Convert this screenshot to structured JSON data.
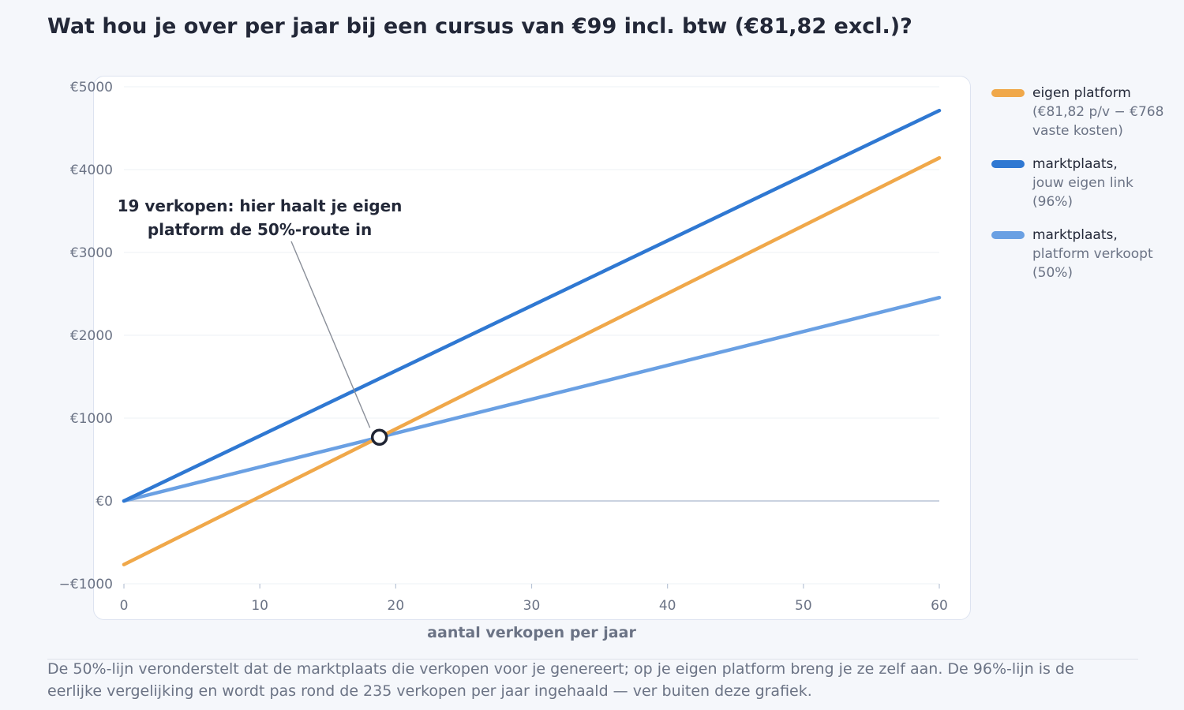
{
  "title": "Wat hou je over per jaar bij een cursus van €99 incl. btw (€81,82 excl.)?",
  "footnote": "De 50%-lijn veronderstelt dat de marktplaats die verkopen voor je genereert; op je eigen platform breng je ze zelf aan. De 96%-lijn is de eerlijke vergelijking en wordt pas rond de 235 verkopen per jaar ingehaald — ver buiten deze grafiek.",
  "legend": [
    {
      "name": "eigen platform",
      "sub": "(€81,82 p/v − €768 vaste kosten)",
      "color": "#f0a84a"
    },
    {
      "name": "marktplaats,",
      "sub": "jouw eigen link (96%)",
      "color": "#2f78d2"
    },
    {
      "name": "marktplaats,",
      "sub": "platform verkoopt (50%)",
      "color": "#6aa0e3"
    }
  ],
  "chart_data": {
    "type": "line",
    "xlabel": "aantal verkopen per jaar",
    "ylabel": "",
    "xlim": [
      0,
      60
    ],
    "ylim": [
      -1000,
      5000
    ],
    "xticks": [
      0,
      10,
      20,
      30,
      40,
      50,
      60
    ],
    "xtick_labels": [
      "0",
      "10",
      "20",
      "30",
      "40",
      "50",
      "60"
    ],
    "yticks": [
      -1000,
      0,
      1000,
      2000,
      3000,
      4000,
      5000
    ],
    "ytick_labels": [
      "−€1000",
      "€0",
      "€1000",
      "€2000",
      "€3000",
      "€4000",
      "€5000"
    ],
    "grid": true,
    "legend_position": "right",
    "x": [
      0,
      60
    ],
    "series": [
      {
        "name": "eigen platform (€81,82 p/v − €768 vaste kosten)",
        "color": "#f0a84a",
        "values": [
          -768,
          4141
        ]
      },
      {
        "name": "marktplaats, jouw eigen link (96%)",
        "color": "#2f78d2",
        "values": [
          0,
          4713
        ]
      },
      {
        "name": "marktplaats, platform verkoopt (50%)",
        "color": "#6aa0e3",
        "values": [
          0,
          2455
        ]
      }
    ],
    "annotation": {
      "text_lines": [
        "19 verkopen: hier haalt je eigen",
        "platform de 50%-route in"
      ],
      "point": {
        "x": 18.8,
        "y": 769
      }
    }
  }
}
